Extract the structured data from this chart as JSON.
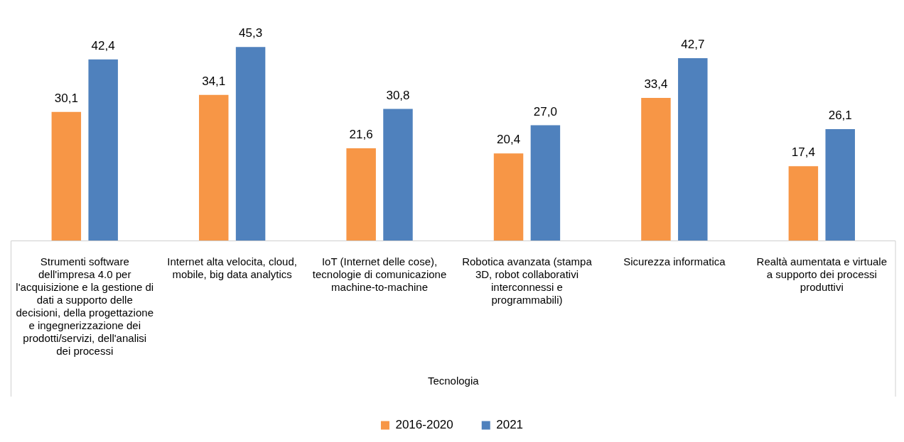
{
  "chart_data": {
    "type": "bar",
    "xlabel": "Tecnologia",
    "legend": "bottom",
    "categories": [
      "Strumenti software dell'impresa 4.0 per l'acquisizione e la gestione di dati a supporto delle decisioni, della progettazione e ingegnerizzazione dei prodotti/servizi, dell'analisi dei processi",
      "Internet alta velocita, cloud, mobile, big data analytics",
      "IoT (Internet delle cose), tecnologie di comunicazione machine-to-machine",
      "Robotica avanzata (stampa 3D, robot collaborativi interconnessi e programmabili)",
      "Sicurezza informatica",
      "Realtà aumentata e virtuale a supporto dei processi produttivi"
    ],
    "tick_labels": "x",
    "series": [
      {
        "name": "2016-2020",
        "color": "#f79646",
        "values": [
          30.1,
          34.1,
          21.6,
          20.4,
          33.4,
          17.4
        ],
        "value_labels": [
          "30,1",
          "34,1",
          "21,6",
          "20,4",
          "33,4",
          "17,4"
        ]
      },
      {
        "name": "2021",
        "color": "#4f81bd",
        "values": [
          42.4,
          45.3,
          30.8,
          27.0,
          42.7,
          26.1
        ],
        "value_labels": [
          "42,4",
          "45,3",
          "30,8",
          "27,0",
          "42,7",
          "26,1"
        ]
      }
    ]
  }
}
